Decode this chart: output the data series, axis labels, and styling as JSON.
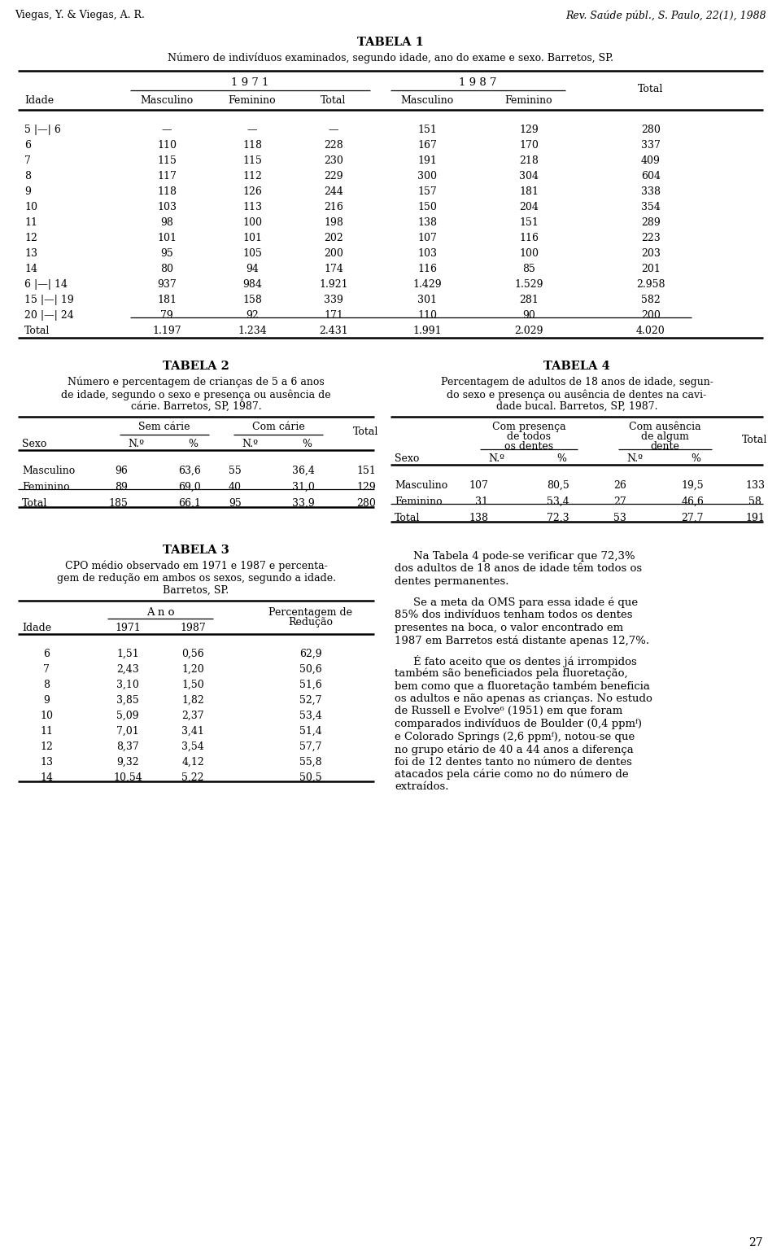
{
  "header_left": "Viegas, Y. & Viegas, A. R.",
  "header_right": "Rev. Saúde públ., S. Paulo, 22(1), 1988",
  "tabela1_title": "TABELA 1",
  "tabela1_subtitle": "Número de indivíduos examinados, segundo idade, ano do exame e sexo. Barretos, SP.",
  "tabela1_rows": [
    [
      "5 |—| 6",
      "—",
      "—",
      "—",
      "151",
      "129",
      "280"
    ],
    [
      "6",
      "110",
      "118",
      "228",
      "167",
      "170",
      "337"
    ],
    [
      "7",
      "115",
      "115",
      "230",
      "191",
      "218",
      "409"
    ],
    [
      "8",
      "117",
      "112",
      "229",
      "300",
      "304",
      "604"
    ],
    [
      "9",
      "118",
      "126",
      "244",
      "157",
      "181",
      "338"
    ],
    [
      "10",
      "103",
      "113",
      "216",
      "150",
      "204",
      "354"
    ],
    [
      "11",
      "98",
      "100",
      "198",
      "138",
      "151",
      "289"
    ],
    [
      "12",
      "101",
      "101",
      "202",
      "107",
      "116",
      "223"
    ],
    [
      "13",
      "95",
      "105",
      "200",
      "103",
      "100",
      "203"
    ],
    [
      "14",
      "80",
      "94",
      "174",
      "116",
      "85",
      "201"
    ],
    [
      "6 |—| 14",
      "937",
      "984",
      "1.921",
      "1.429",
      "1.529",
      "2.958"
    ],
    [
      "15 |—| 19",
      "181",
      "158",
      "339",
      "301",
      "281",
      "582"
    ],
    [
      "20 |—| 24",
      "79",
      "92",
      "171",
      "110",
      "90",
      "200"
    ],
    [
      "Total",
      "1.197",
      "1.234",
      "2.431",
      "1.991",
      "2.029",
      "4.020"
    ]
  ],
  "tabela2_title": "TABELA 2",
  "tabela2_subtitle_lines": [
    "Número e percentagem de crianças de 5 a 6 anos",
    "de idade, segundo o sexo e presença ou ausência de",
    "cárie. Barretos, SP, 1987."
  ],
  "tabela2_rows": [
    [
      "Masculino",
      "96",
      "63,6",
      "55",
      "36,4",
      "151"
    ],
    [
      "Feminino",
      "89",
      "69,0",
      "40",
      "31,0",
      "129"
    ],
    [
      "Total",
      "185",
      "66,1",
      "95",
      "33,9",
      "280"
    ]
  ],
  "tabela3_title": "TABELA 3",
  "tabela3_subtitle_lines": [
    "CPO médio observado em 1971 e 1987 e percenta-",
    "gem de redução em ambos os sexos, segundo a idade.",
    "Barretos, SP."
  ],
  "tabela3_rows": [
    [
      "6",
      "1,51",
      "0,56",
      "62,9"
    ],
    [
      "7",
      "2,43",
      "1,20",
      "50,6"
    ],
    [
      "8",
      "3,10",
      "1,50",
      "51,6"
    ],
    [
      "9",
      "3,85",
      "1,82",
      "52,7"
    ],
    [
      "10",
      "5,09",
      "2,37",
      "53,4"
    ],
    [
      "11",
      "7,01",
      "3,41",
      "51,4"
    ],
    [
      "12",
      "8,37",
      "3,54",
      "57,7"
    ],
    [
      "13",
      "9,32",
      "4,12",
      "55,8"
    ],
    [
      "14",
      "10,54",
      "5,22",
      "50,5"
    ]
  ],
  "tabela4_title": "TABELA 4",
  "tabela4_subtitle_lines": [
    "Percentagem de adultos de 18 anos de idade, segun-",
    "do sexo e presença ou ausência de dentes na cavi-",
    "dade bucal. Barretos, SP, 1987."
  ],
  "tabela4_rows": [
    [
      "Masculino",
      "107",
      "80,5",
      "26",
      "19,5",
      "133"
    ],
    [
      "Feminino",
      "31",
      "53,4",
      "27",
      "46,6",
      "58"
    ],
    [
      "Total",
      "138",
      "72,3",
      "53",
      "27,7",
      "191"
    ]
  ],
  "para1_lines": [
    "Na Tabela 4 pode-se verificar que 72,3%",
    "dos adultos de 18 anos de idade têm todos os",
    "dentes permanentes."
  ],
  "para2_lines": [
    "Se a meta da OMS para essa idade é que",
    "85% dos indivíduos tenham todos os dentes",
    "presentes na boca, o valor encontrado em",
    "1987 em Barretos está distante apenas 12,7%."
  ],
  "para3_lines": [
    "É fato aceito que os dentes já irrompidos",
    "também são beneficiados pela fluoretação,",
    "bem como que a fluoretação também beneficia",
    "os adultos e não apenas as crianças. No estudo",
    "de Russell e Evolve⁶ (1951) em que foram",
    "comparados indivíduos de Boulder (0,4 ppmᶠ)",
    "e Colorado Springs (2,6 ppmᶠ), notou-se que",
    "no grupo etário de 40 a 44 anos a diferença",
    "foi de 12 dentes tanto no número de dentes",
    "atacados pela cárie como no do número de",
    "extraídos."
  ],
  "page_number": "27"
}
